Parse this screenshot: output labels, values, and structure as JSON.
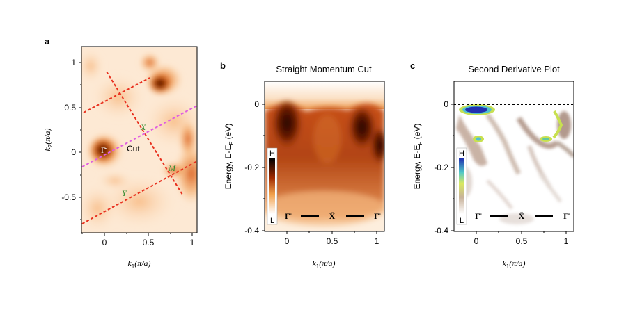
{
  "panels": {
    "a": {
      "letter": "a",
      "xlabel": {
        "k": "k",
        "sub": "1",
        "unit": "(π/a)"
      },
      "ylabel": {
        "k": "k",
        "sub": "2",
        "unit": "(π/a)"
      },
      "xticks": [
        "0",
        "0.5",
        "1"
      ],
      "yticks": [
        "1",
        "0.5",
        "0",
        "-0.5"
      ],
      "points": {
        "gamma": "Γ̄",
        "x": "X̄",
        "y": "Ȳ",
        "m": "M̄"
      },
      "cut_label": "Cut"
    },
    "b": {
      "letter": "b",
      "title": "Straight Momentum Cut",
      "ylabel": "Energy, E-E",
      "ylabel_sub": "F",
      "ylabel_unit": " (eV)",
      "xlabel": {
        "k": "k",
        "sub": "1",
        "unit": "(π/a)"
      },
      "xticks": [
        "0",
        "0.5",
        "1"
      ],
      "yticks": [
        "0",
        "-0.2",
        "-0.4"
      ],
      "colorbar": {
        "high": "H",
        "low": "L"
      },
      "path_labels": [
        "Γ̄",
        "X̄",
        "Γ̄"
      ]
    },
    "c": {
      "letter": "c",
      "title": "Second Derivative Plot",
      "ylabel": "Energy, E-E",
      "ylabel_sub": "F",
      "ylabel_unit": " (eV)",
      "xlabel": {
        "k": "k",
        "sub": "1",
        "unit": "(π/a)"
      },
      "xticks": [
        "0",
        "0.5",
        "1"
      ],
      "yticks": [
        "0",
        "-0.2",
        "-0.4"
      ],
      "colorbar": {
        "high": "H",
        "low": "L"
      },
      "path_labels": [
        "Γ̄",
        "X̄",
        "Γ̄"
      ]
    }
  },
  "colors": {
    "cut_lines": "#e8301e",
    "cut_line_main": "#e060e0",
    "point_labels": "#2e8b2e",
    "fermi_line": "#000000"
  }
}
